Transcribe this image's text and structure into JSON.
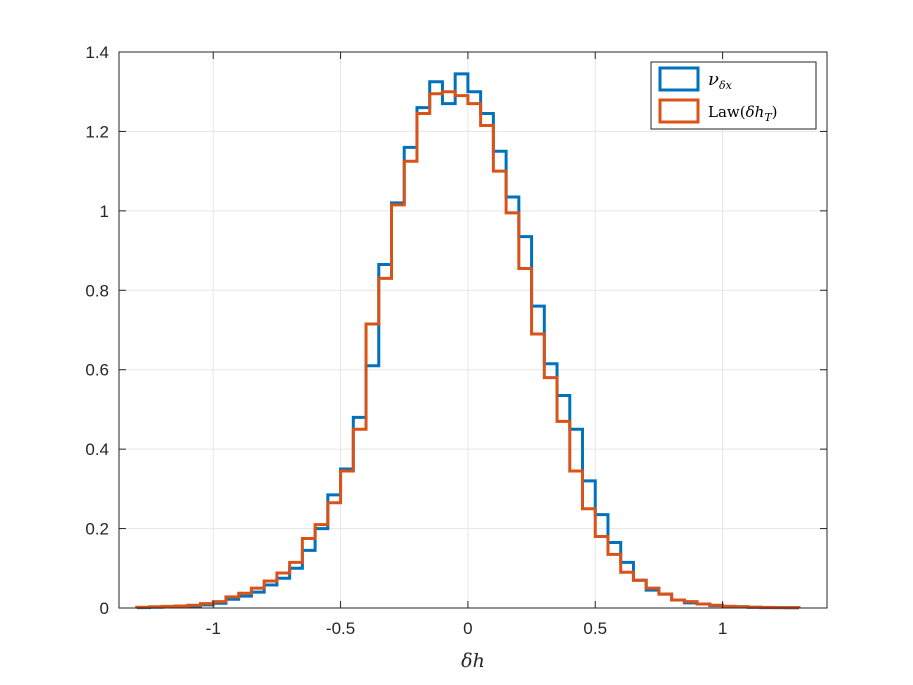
{
  "chart_data": {
    "type": "histogram",
    "xlabel": "δh",
    "ylabel": "",
    "xlim": [
      -1.37,
      1.41
    ],
    "ylim": [
      0,
      1.4
    ],
    "xticks": [
      -1,
      -0.5,
      0,
      0.5,
      1
    ],
    "xtick_labels": [
      "-1",
      "-0.5",
      "0",
      "0.5",
      "1"
    ],
    "yticks": [
      0,
      0.2,
      0.4,
      0.6,
      0.8,
      1,
      1.2,
      1.4
    ],
    "ytick_labels": [
      "0",
      "0.2",
      "0.4",
      "0.6",
      "0.8",
      "1",
      "1.2",
      "1.4"
    ],
    "grid": true,
    "legend_position": "top-right",
    "series": [
      {
        "name": "ν_δx",
        "legend_main": "ν",
        "legend_sub": "δx",
        "color": "#0072BD",
        "bin_edges": [
          -1.3,
          -1.25,
          -1.2,
          -1.15,
          -1.1,
          -1.05,
          -1.0,
          -0.95,
          -0.9,
          -0.85,
          -0.8,
          -0.75,
          -0.7,
          -0.65,
          -0.6,
          -0.55,
          -0.5,
          -0.45,
          -0.4,
          -0.35,
          -0.3,
          -0.25,
          -0.2,
          -0.15,
          -0.1,
          -0.05,
          0.0,
          0.05,
          0.1,
          0.15,
          0.2,
          0.25,
          0.3,
          0.35,
          0.4,
          0.45,
          0.5,
          0.55,
          0.6,
          0.65,
          0.7,
          0.75,
          0.8,
          0.85,
          0.9,
          0.95,
          1.0,
          1.05,
          1.1,
          1.15,
          1.2,
          1.25,
          1.3
        ],
        "values": [
          0.001,
          0.002,
          0.003,
          0.004,
          0.005,
          0.008,
          0.012,
          0.022,
          0.03,
          0.04,
          0.058,
          0.075,
          0.1,
          0.145,
          0.2,
          0.285,
          0.35,
          0.48,
          0.61,
          0.865,
          1.02,
          1.16,
          1.26,
          1.325,
          1.27,
          1.345,
          1.3,
          1.245,
          1.15,
          1.035,
          0.935,
          0.76,
          0.615,
          0.535,
          0.45,
          0.32,
          0.235,
          0.165,
          0.115,
          0.07,
          0.045,
          0.035,
          0.02,
          0.013,
          0.01,
          0.006,
          0.004,
          0.003,
          0.002,
          0.001,
          0.001,
          0.0005
        ]
      },
      {
        "name": "Law(δh_T)",
        "legend_prefix": "Law(",
        "legend_main": "δh",
        "legend_sub": "T",
        "legend_suffix": ")",
        "color": "#D95319",
        "bin_edges": [
          -1.3,
          -1.25,
          -1.2,
          -1.15,
          -1.1,
          -1.05,
          -1.0,
          -0.95,
          -0.9,
          -0.85,
          -0.8,
          -0.75,
          -0.7,
          -0.65,
          -0.6,
          -0.55,
          -0.5,
          -0.45,
          -0.4,
          -0.35,
          -0.3,
          -0.25,
          -0.2,
          -0.15,
          -0.1,
          -0.05,
          0.0,
          0.05,
          0.1,
          0.15,
          0.2,
          0.25,
          0.3,
          0.35,
          0.4,
          0.45,
          0.5,
          0.55,
          0.6,
          0.65,
          0.7,
          0.75,
          0.8,
          0.85,
          0.9,
          0.95,
          1.0,
          1.05,
          1.1,
          1.15,
          1.2,
          1.25,
          1.3
        ],
        "values": [
          0.002,
          0.003,
          0.004,
          0.005,
          0.007,
          0.011,
          0.016,
          0.028,
          0.037,
          0.05,
          0.068,
          0.088,
          0.115,
          0.175,
          0.21,
          0.265,
          0.345,
          0.45,
          0.715,
          0.83,
          1.015,
          1.125,
          1.245,
          1.295,
          1.3,
          1.29,
          1.27,
          1.215,
          1.1,
          0.995,
          0.855,
          0.69,
          0.58,
          0.47,
          0.345,
          0.25,
          0.18,
          0.135,
          0.09,
          0.07,
          0.05,
          0.035,
          0.02,
          0.016,
          0.01,
          0.007,
          0.004,
          0.003,
          0.002,
          0.0015,
          0.001,
          0.0008
        ]
      }
    ]
  }
}
